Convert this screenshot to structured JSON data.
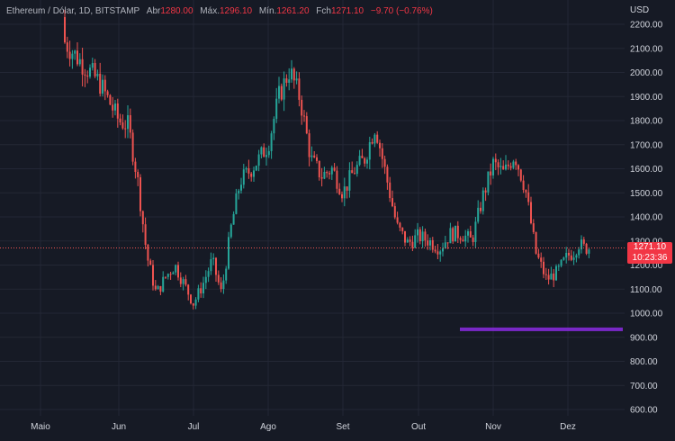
{
  "header": {
    "symbol": "Ethereum / Dólar, 1D, BITSTAMP",
    "open_label": "Abr",
    "open_value": "1280.00",
    "high_label": "Máx.",
    "high_value": "1296.10",
    "low_label": "Mín.",
    "low_value": "1261.20",
    "close_label": "Fch",
    "close_value": "1271.10",
    "change": "−9.70 (−0.76%)"
  },
  "axis": {
    "currency": "USD",
    "last_price": "1271.10",
    "countdown": "10:23:36"
  },
  "colors": {
    "background": "#161a25",
    "up": "#26a69a",
    "down": "#ef5350",
    "grid": "#232735",
    "range_bar": "#8a2be2",
    "price_tag": "#f23645"
  },
  "chart_data": {
    "type": "candlestick",
    "ylim": [
      550,
      2260
    ],
    "y_ticks": [
      600,
      700,
      800,
      900,
      1000,
      1100,
      1200,
      1300,
      1400,
      1500,
      1600,
      1700,
      1800,
      1900,
      2000,
      2100,
      2200
    ],
    "x_ticks": [
      "Maio",
      "Jun",
      "Jul",
      "Ago",
      "Set",
      "Out",
      "Nov",
      "Dez"
    ],
    "last_price": 1271.1,
    "range_marker": {
      "from": "Out",
      "to": "Dez",
      "price": 933
    },
    "close_path": [
      [
        "Maio",
        2230
      ],
      [
        "Maio",
        2150
      ],
      [
        "Maio",
        2050
      ],
      [
        "Maio",
        1960
      ],
      [
        "Jun",
        1800
      ],
      [
        "Jun",
        1780
      ],
      [
        "Jun",
        1560
      ],
      [
        "Jun",
        1240
      ],
      [
        "Jun",
        1080
      ],
      [
        "Jun",
        1150
      ],
      [
        "Jun",
        1200
      ],
      [
        "Jun",
        1120
      ],
      [
        "Jul",
        1040
      ],
      [
        "Jul",
        1120
      ],
      [
        "Jul",
        1220
      ],
      [
        "Jul",
        1080
      ],
      [
        "Jul",
        1350
      ],
      [
        "Jul",
        1550
      ],
      [
        "Jul",
        1590
      ],
      [
        "Jul",
        1640
      ],
      [
        "Ago",
        1700
      ],
      [
        "Ago",
        1900
      ],
      [
        "Ago",
        2010
      ],
      [
        "Ago",
        1890
      ],
      [
        "Ago",
        1640
      ],
      [
        "Ago",
        1570
      ],
      [
        "Ago",
        1600
      ],
      [
        "Set",
        1500
      ],
      [
        "Set",
        1590
      ],
      [
        "Set",
        1640
      ],
      [
        "Set",
        1780
      ],
      [
        "Set",
        1570
      ],
      [
        "Set",
        1360
      ],
      [
        "Set",
        1290
      ],
      [
        "Out",
        1320
      ],
      [
        "Out",
        1300
      ],
      [
        "Out",
        1270
      ],
      [
        "Out",
        1330
      ],
      [
        "Out",
        1330
      ],
      [
        "Out",
        1300
      ],
      [
        "Out",
        1480
      ],
      [
        "Nov",
        1620
      ],
      [
        "Nov",
        1580
      ],
      [
        "Nov",
        1660
      ],
      [
        "Nov",
        1520
      ],
      [
        "Nov",
        1250
      ],
      [
        "Nov",
        1140
      ],
      [
        "Nov",
        1170
      ],
      [
        "Dez",
        1240
      ],
      [
        "Dez",
        1250
      ],
      [
        "Dez",
        1290
      ],
      [
        "Dez",
        1271
      ]
    ]
  }
}
